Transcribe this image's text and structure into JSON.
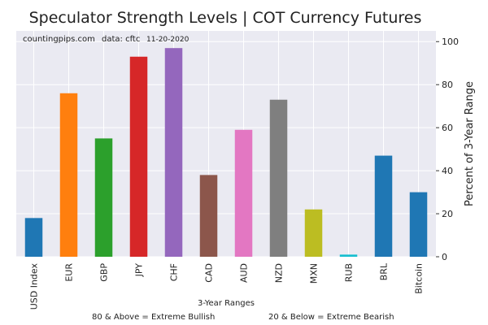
{
  "chart_data": {
    "type": "bar",
    "title": "Speculator Strength Levels | COT Currency Futures",
    "annotation": {
      "site": "countingpips.com",
      "source": "data: cftc",
      "date": "11-20-2020"
    },
    "xlabel": "3-Year Ranges",
    "ylabel": "Percent of 3-Year Range",
    "ylim": [
      0,
      105
    ],
    "yticks": [
      "0",
      "20",
      "40",
      "60",
      "80",
      "100"
    ],
    "y_axis_side": "right",
    "grid": true,
    "categories": [
      "USD Index",
      "EUR",
      "GBP",
      "JPY",
      "CHF",
      "CAD",
      "AUD",
      "NZD",
      "MXN",
      "RUB",
      "BRL",
      "Bitcoin"
    ],
    "values": [
      18,
      76,
      55,
      93,
      97,
      38,
      59,
      73,
      22,
      1,
      47,
      30
    ],
    "colors": [
      "#1f77b4",
      "#ff7f0e",
      "#2ca02c",
      "#d62728",
      "#9467bd",
      "#8c564b",
      "#e377c2",
      "#7f7f7f",
      "#bcbd22",
      "#17becf",
      "#1f77b4",
      "#1f77b4"
    ],
    "footnotes": {
      "bullish": "80 & Above = Extreme Bullish",
      "bearish": "20 & Below = Extreme Bearish"
    },
    "background": "#eaeaf2",
    "grid_color": "#ffffff"
  }
}
